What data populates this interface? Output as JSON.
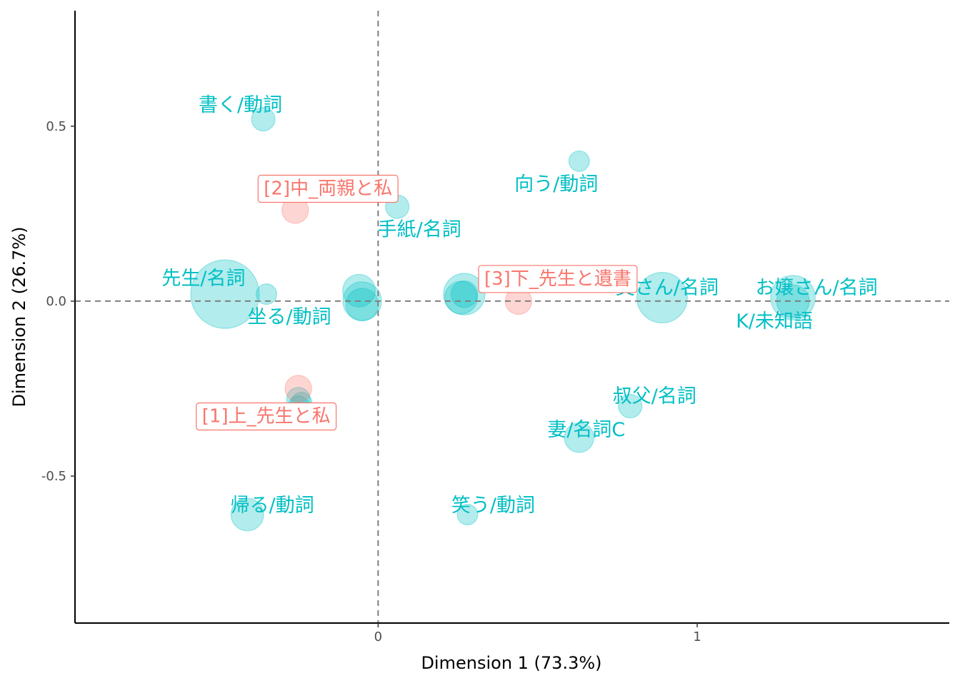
{
  "chart_data": {
    "type": "scatter",
    "title": "",
    "xlabel": "Dimension 1 (73.3%)",
    "ylabel": "Dimension 2 (26.7%)",
    "xlim": [
      -0.95,
      1.79
    ],
    "ylim": [
      -0.92,
      0.83
    ],
    "x_ticks": [
      {
        "value": 0,
        "label": "0"
      },
      {
        "value": 1,
        "label": "1"
      }
    ],
    "y_ticks": [
      {
        "value": 0.5,
        "label": "0.5"
      },
      {
        "value": 0,
        "label": "0.0"
      },
      {
        "value": -0.5,
        "label": "-0.5"
      }
    ],
    "reference_lines": {
      "x": 0,
      "y": 0,
      "style": "dashed"
    },
    "grid": false,
    "colors": {
      "words": "#00BFC4",
      "documents": "#F8766D"
    },
    "documents": [
      {
        "label": "[1]上_先生と私",
        "x": -0.25,
        "y": -0.25,
        "size": 3
      },
      {
        "label": "[2]中_両親と私",
        "x": -0.26,
        "y": 0.26,
        "size": 3
      },
      {
        "label": "[3]下_先生と遺書",
        "x": 0.44,
        "y": 0.0,
        "size": 3
      }
    ],
    "words": [
      {
        "label": "先生/名詞",
        "x": -0.48,
        "y": 0.02,
        "size": 10
      },
      {
        "label": "書く/動詞",
        "x": -0.36,
        "y": 0.52,
        "size": 2.5
      },
      {
        "label": "坐る/動詞",
        "x": -0.35,
        "y": 0.02,
        "size": 2
      },
      {
        "label": "帰る/動詞",
        "x": -0.41,
        "y": -0.61,
        "size": 4
      },
      {
        "label": "手紙/名詞",
        "x": 0.06,
        "y": 0.27,
        "size": 2.5
      },
      {
        "label": "向う/動詞",
        "x": 0.63,
        "y": 0.4,
        "size": 2
      },
      {
        "label": "奥さん/名詞",
        "x": 0.89,
        "y": 0.01,
        "size": 7
      },
      {
        "label": "お嬢さん/名詞",
        "x": 1.3,
        "y": 0.01,
        "size": 6
      },
      {
        "label": "K/未知語",
        "x": 1.3,
        "y": 0.0,
        "size": 4
      },
      {
        "label": "叔父/名詞",
        "x": 0.79,
        "y": -0.3,
        "size": 2.5
      },
      {
        "label": "妻/名詞C",
        "x": 0.63,
        "y": -0.39,
        "size": 3.5
      },
      {
        "label": "笑う/動詞",
        "x": 0.28,
        "y": -0.61,
        "size": 2
      },
      {
        "label": "",
        "x": -0.06,
        "y": 0.03,
        "size": 4
      },
      {
        "label": "",
        "x": -0.05,
        "y": 0.0,
        "size": 5
      },
      {
        "label": "",
        "x": -0.05,
        "y": -0.01,
        "size": 4
      },
      {
        "label": "",
        "x": 0.27,
        "y": 0.02,
        "size": 5.5
      },
      {
        "label": "",
        "x": 0.26,
        "y": 0.01,
        "size": 4
      },
      {
        "label": "",
        "x": 0.27,
        "y": 0.02,
        "size": 3
      },
      {
        "label": "",
        "x": -0.25,
        "y": -0.28,
        "size": 2.5
      },
      {
        "label": "",
        "x": -0.24,
        "y": -0.29,
        "size": 2
      },
      {
        "label": "",
        "x": -0.25,
        "y": -0.3,
        "size": 2
      }
    ]
  }
}
